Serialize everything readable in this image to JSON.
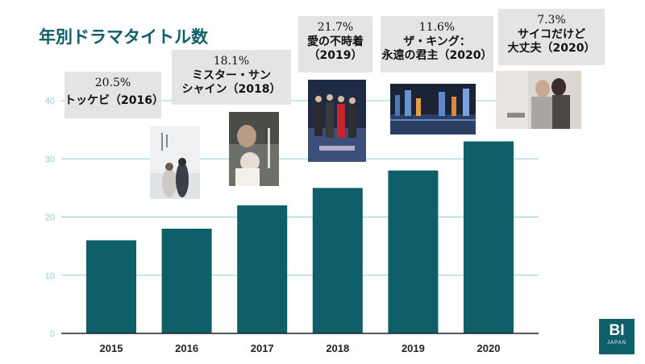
{
  "title": "年別ドラマタイトル数",
  "chart_data": {
    "type": "bar",
    "categories": [
      "2015",
      "2016",
      "2017",
      "2018",
      "2019",
      "2020"
    ],
    "values": [
      16,
      18,
      22,
      25,
      28,
      33
    ],
    "ylim": [
      0,
      45
    ],
    "yticks": [
      "0",
      "10",
      "20",
      "30",
      "40"
    ],
    "grid": true,
    "bar_color": "#0e5f6a",
    "grid_color": "#8fd0d6"
  },
  "callouts": [
    {
      "pct": "20.5%",
      "name": "トッケビ（2016）",
      "year": "2016"
    },
    {
      "pct": "18.1%",
      "name": "ミスター・サン\nシャイン（2018）",
      "year": "2017"
    },
    {
      "pct": "21.7%",
      "name": "愛の不時着\n（2019）",
      "year": "2018"
    },
    {
      "pct": "11.6%",
      "name": "ザ・キング：\n永遠の君主（2020）",
      "year": "2019"
    },
    {
      "pct": "7.3%",
      "name": "サイコだけど\n大丈夫（2020）",
      "year": "2020"
    }
  ],
  "logo": {
    "main": "BI",
    "sub": "JAPAN"
  }
}
